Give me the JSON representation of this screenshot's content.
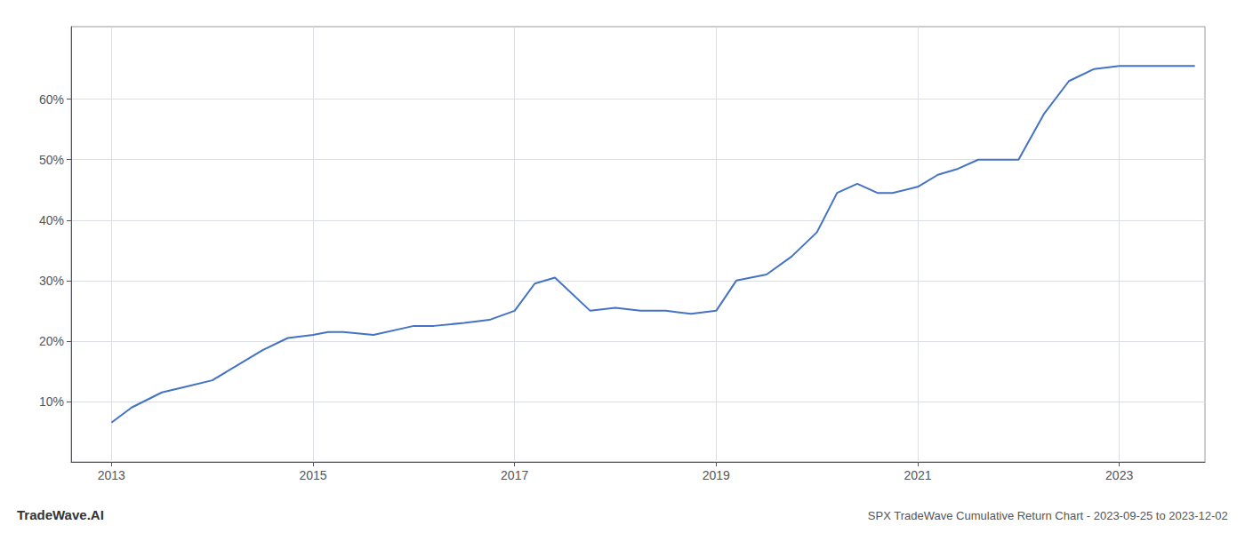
{
  "chart_data": {
    "type": "line",
    "title": "SPX TradeWave Cumulative Return Chart - 2023-09-25 to 2023-12-02",
    "annotations": [
      "TradeWave.AI"
    ],
    "color": "#4472C4",
    "grid": true,
    "x": [
      2013.0,
      2013.2,
      2013.5,
      2013.75,
      2014.0,
      2014.25,
      2014.5,
      2014.75,
      2015.0,
      2015.15,
      2015.3,
      2015.6,
      2016.0,
      2016.2,
      2016.5,
      2016.75,
      2017.0,
      2017.2,
      2017.4,
      2017.75,
      2018.0,
      2018.25,
      2018.5,
      2018.75,
      2019.0,
      2019.2,
      2019.5,
      2019.75,
      2020.0,
      2020.2,
      2020.4,
      2020.6,
      2020.75,
      2021.0,
      2021.2,
      2021.4,
      2021.6,
      2022.0,
      2022.25,
      2022.5,
      2022.75,
      2023.0,
      2023.5,
      2023.75
    ],
    "values": [
      6.5,
      9.0,
      11.5,
      12.5,
      13.5,
      16.0,
      18.5,
      20.5,
      21.0,
      21.5,
      21.5,
      21.0,
      22.5,
      22.5,
      23.0,
      23.5,
      25.0,
      29.5,
      30.5,
      25.0,
      25.5,
      25.0,
      25.0,
      24.5,
      25.0,
      30.0,
      31.0,
      34.0,
      38.0,
      44.5,
      46.0,
      44.5,
      44.5,
      45.5,
      47.5,
      48.5,
      50.0,
      50.0,
      57.5,
      63.0,
      65.0,
      65.5,
      65.5,
      65.5
    ],
    "xlim": [
      2012.6,
      2023.85
    ],
    "xticks": [
      2013,
      2015,
      2017,
      2019,
      2021,
      2023
    ],
    "ylim": [
      0,
      72
    ],
    "yticks": [
      {
        "value": 10,
        "label": "10%"
      },
      {
        "value": 20,
        "label": "20%"
      },
      {
        "value": 30,
        "label": "30%"
      },
      {
        "value": 40,
        "label": "40%"
      },
      {
        "value": 50,
        "label": "50%"
      },
      {
        "value": 60,
        "label": "60%"
      }
    ]
  }
}
